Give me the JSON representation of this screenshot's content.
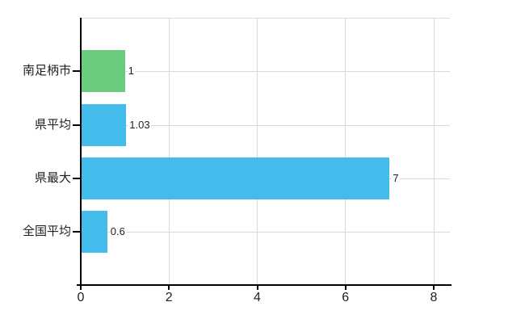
{
  "chart_data": {
    "type": "bar",
    "orientation": "horizontal",
    "title": "",
    "xlabel": "",
    "ylabel": "",
    "categories": [
      "南足柄市",
      "県平均",
      "県最大",
      "全国平均"
    ],
    "values": [
      1,
      1.03,
      7,
      0.6
    ],
    "value_labels": [
      "1",
      "1.03",
      "7",
      "0.6"
    ],
    "bar_colors": [
      "#6bcb7c",
      "#43bcec",
      "#43bcec",
      "#43bcec"
    ],
    "x_ticks": [
      0,
      2,
      4,
      6,
      8
    ],
    "xlim": [
      0,
      8.37
    ],
    "grid": true,
    "legend": false,
    "colors": {
      "grid": "#d9d9d9",
      "axis": "#000000",
      "text": "#1f1f1f",
      "background": "#ffffff",
      "green_bar": "#6bcb7c",
      "blue_bar": "#43bcec"
    }
  }
}
